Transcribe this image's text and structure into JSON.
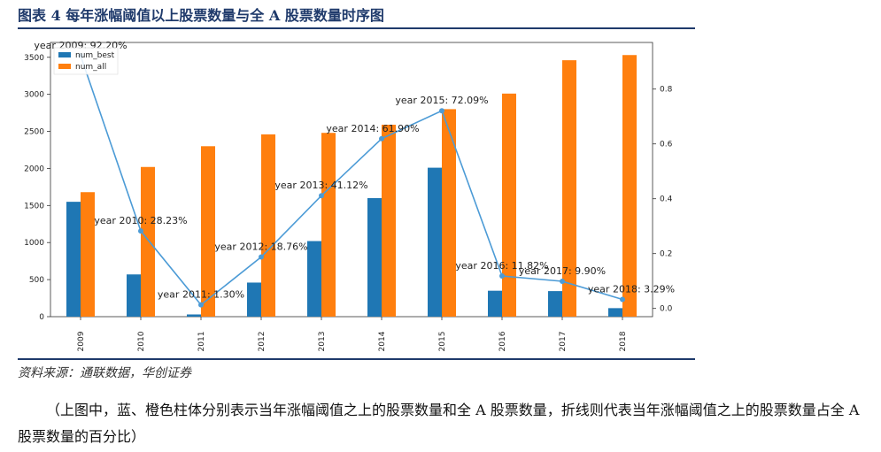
{
  "figure_title": "图表 4   每年涨幅阈值以上股票数量与全 A 股票数量时序图",
  "source": "资料来源：通联数据，华创证券",
  "caption": "（上图中，蓝、橙色柱体分别表示当年涨幅阈值之上的股票数量和全 A 股票数量，折线则代表当年涨幅阈值之上的股票数量占全 A 股票数量的百分比）",
  "chart_data": {
    "type": "bar",
    "categories": [
      "2009",
      "2010",
      "2011",
      "2012",
      "2013",
      "2014",
      "2015",
      "2016",
      "2017",
      "2018"
    ],
    "series": [
      {
        "name": "num_best",
        "color": "#1f77b4",
        "values": [
          1550,
          570,
          30,
          460,
          1020,
          1600,
          2010,
          350,
          345,
          115
        ]
      },
      {
        "name": "num_all",
        "color": "#ff7f0e",
        "values": [
          1680,
          2020,
          2300,
          2460,
          2480,
          2590,
          2800,
          3010,
          3460,
          3530
        ]
      }
    ],
    "line": {
      "color": "#4c9bd6",
      "values": [
        0.922,
        0.2823,
        0.013,
        0.1876,
        0.4112,
        0.619,
        0.7209,
        0.1182,
        0.099,
        0.0329
      ],
      "labels": [
        "year 2009: 92.20%",
        "year 2010: 28.23%",
        "year 2011: 1.30%",
        "year 2012: 18.76%",
        "year 2013: 41.12%",
        "year 2014: 61.90%",
        "year 2015: 72.09%",
        "year 2016: 11.82%",
        "year 2017: 9.90%",
        "year 2018: 3.29%"
      ]
    },
    "y_left": {
      "ticks": [
        0,
        500,
        1000,
        1500,
        2000,
        2500,
        3000,
        3500
      ],
      "lim": [
        0,
        3700
      ]
    },
    "y_right": {
      "ticks": [
        "0.0",
        "0.2",
        "0.4",
        "0.6",
        "0.8"
      ],
      "tick_values": [
        0,
        0.2,
        0.4,
        0.6,
        0.8
      ],
      "lim": [
        -0.03,
        0.97
      ]
    },
    "legend": {
      "placement": "top-left"
    },
    "grid": false
  }
}
